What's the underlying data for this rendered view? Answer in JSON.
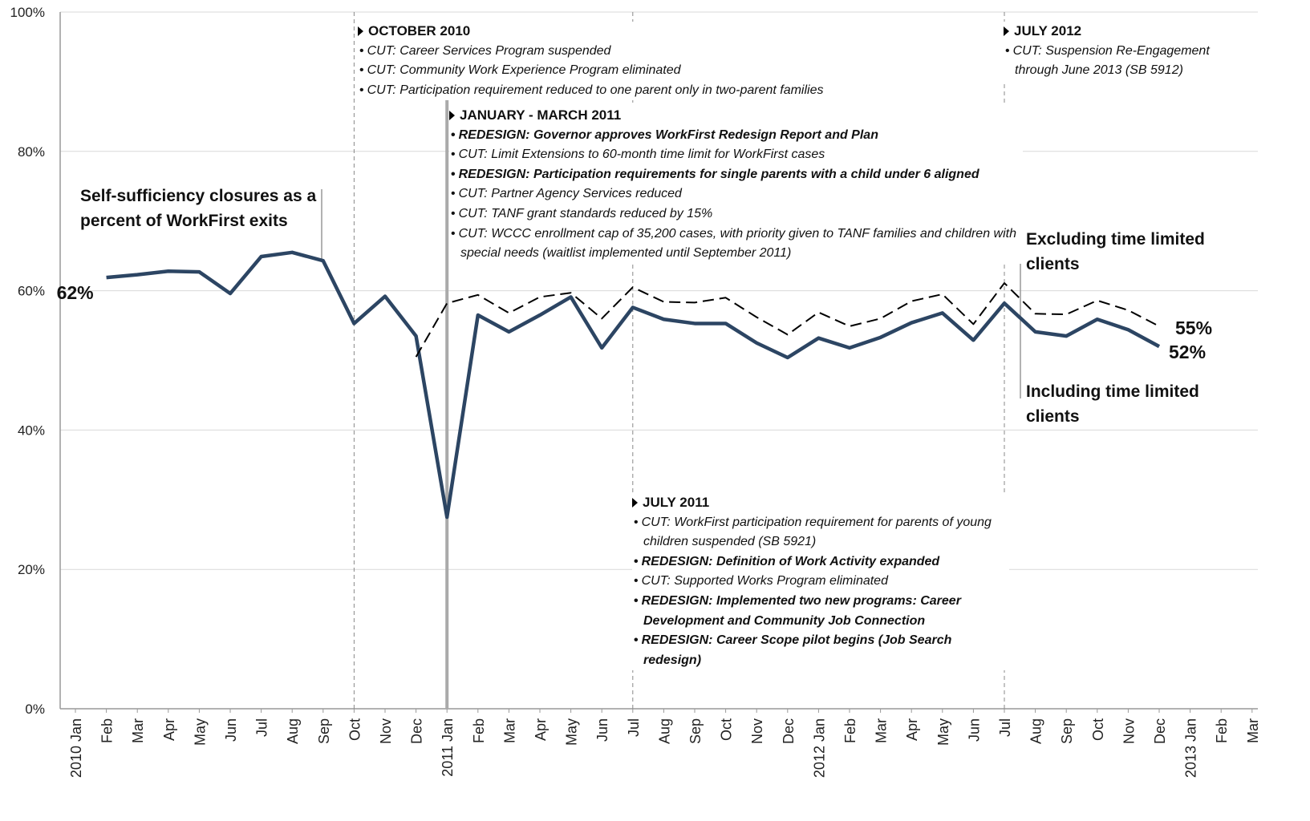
{
  "chart_data": {
    "type": "line",
    "title": "Self-sufficiency closures as a percent of WorkFirst exits",
    "categories": [
      "2010 Jan",
      "Feb",
      "Mar",
      "Apr",
      "May",
      "Jun",
      "Jul",
      "Aug",
      "Sep",
      "Oct",
      "Nov",
      "Dec",
      "2011 Jan",
      "Feb",
      "Mar",
      "Apr",
      "May",
      "Jun",
      "Jul",
      "Aug",
      "Sep",
      "Oct",
      "Nov",
      "Dec",
      "2012 Jan",
      "Feb",
      "Mar",
      "Apr",
      "May",
      "Jun",
      "Jul",
      "Aug",
      "Sep",
      "Oct",
      "Nov",
      "Dec",
      "2013 Jan",
      "Feb",
      "Mar"
    ],
    "series": [
      {
        "name": "Including time limited clients",
        "color": "#2c4563",
        "style": "solid",
        "values": [
          null,
          61.9,
          62.3,
          62.8,
          62.7,
          59.6,
          64.9,
          65.5,
          64.3,
          55.3,
          59.2,
          53.5,
          27.5,
          56.5,
          54.1,
          56.5,
          59.1,
          51.8,
          57.6,
          55.9,
          55.3,
          55.3,
          52.5,
          50.4,
          53.2,
          51.8,
          53.3,
          55.4,
          56.8,
          52.9,
          58.2,
          54.1,
          53.5,
          55.9,
          54.4,
          52.0,
          null,
          null,
          null
        ],
        "value_labels": [
          null,
          "62%",
          null,
          null,
          null,
          null,
          null,
          null,
          null,
          null,
          null,
          null,
          null,
          null,
          null,
          null,
          null,
          null,
          null,
          null,
          null,
          null,
          null,
          null,
          null,
          null,
          null,
          null,
          null,
          null,
          null,
          null,
          null,
          null,
          null,
          "52%",
          null,
          null,
          null
        ]
      },
      {
        "name": "Excluding time limited clients",
        "color": "#000000",
        "style": "dashed",
        "values": [
          null,
          null,
          null,
          null,
          null,
          null,
          null,
          null,
          null,
          null,
          null,
          50.5,
          58.2,
          59.4,
          56.8,
          59.1,
          59.7,
          56.0,
          60.5,
          58.4,
          58.3,
          59.0,
          56.2,
          53.7,
          56.9,
          54.9,
          56.0,
          58.5,
          59.5,
          55.2,
          61.1,
          56.7,
          56.6,
          58.6,
          57.2,
          54.9,
          null,
          null,
          null
        ],
        "value_labels": [
          null,
          null,
          null,
          null,
          null,
          null,
          null,
          null,
          null,
          null,
          null,
          null,
          null,
          null,
          null,
          null,
          null,
          null,
          null,
          null,
          null,
          null,
          null,
          null,
          null,
          null,
          null,
          null,
          null,
          null,
          null,
          null,
          null,
          null,
          null,
          "55%",
          null,
          null,
          null
        ]
      }
    ],
    "ylim": [
      0,
      100
    ],
    "yticks": [
      {
        "value": 0,
        "label": "0%"
      },
      {
        "value": 20,
        "label": "20%"
      },
      {
        "value": 40,
        "label": "40%"
      },
      {
        "value": 60,
        "label": "60%"
      },
      {
        "value": 80,
        "label": "80%"
      },
      {
        "value": 100,
        "label": "100%"
      }
    ],
    "grid": true,
    "annotations": [
      {
        "header": "OCTOBER 2010",
        "items": [
          {
            "text": "CUT: Career Services Program suspended",
            "bold": false
          },
          {
            "text": "CUT: Community Work Experience Program eliminated",
            "bold": false
          },
          {
            "text": "CUT: Participation requirement reduced to one parent only in two-parent families",
            "bold": false
          }
        ]
      },
      {
        "header": "JANUARY - MARCH 2011",
        "items": [
          {
            "text": "REDESIGN: Governor approves WorkFirst Redesign Report and Plan",
            "bold": true
          },
          {
            "text": "CUT: Limit Extensions to 60-month time limit for WorkFirst cases",
            "bold": false
          },
          {
            "text": "REDESIGN: Participation requirements for single parents with a child under 6 aligned",
            "bold": true
          },
          {
            "text": "CUT: Partner Agency Services reduced",
            "bold": false
          },
          {
            "text": "CUT: TANF grant standards reduced by 15%",
            "bold": false
          },
          {
            "text": "CUT: WCCC enrollment cap of 35,200 cases, with priority given to TANF families and children with special needs (waitlist implemented until September 2011)",
            "bold": false
          }
        ]
      },
      {
        "header": "JULY 2011",
        "items": [
          {
            "text": "CUT: WorkFirst participation requirement for parents of young children suspended (SB 5921)",
            "bold": false
          },
          {
            "text": "REDESIGN: Definition of Work Activity expanded",
            "bold": true
          },
          {
            "text": "CUT: Supported Works Program eliminated",
            "bold": false
          },
          {
            "text": "REDESIGN: Implemented two new programs: Career Development and Community Job Connection",
            "bold": true
          },
          {
            "text": "REDESIGN: Career Scope pilot begins (Job Search redesign)",
            "bold": true
          }
        ]
      },
      {
        "header": "JULY 2012",
        "items": [
          {
            "text": "CUT: Suspension Re-Engagement through June 2013 (SB 5912)",
            "bold": false
          }
        ]
      }
    ]
  }
}
